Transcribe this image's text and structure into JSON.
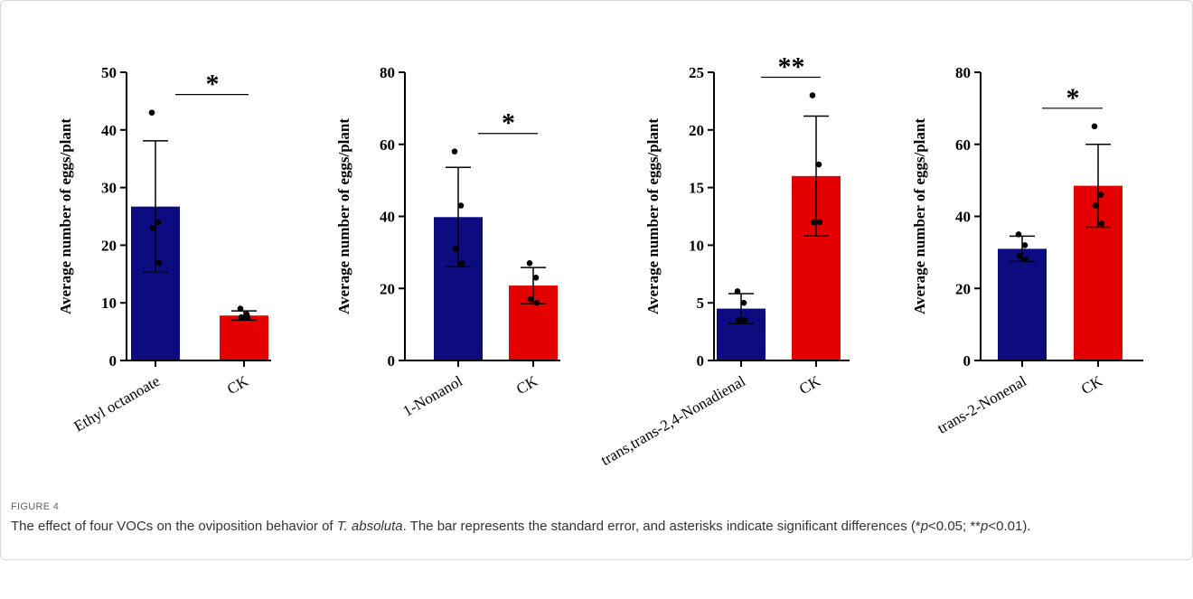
{
  "figure_label": "FIGURE 4",
  "caption": [
    "The effect of four VOCs on the oviposition behavior of ",
    "T. absoluta",
    ". The bar represents the standard error, and asterisks indicate significant differences (*",
    "p",
    "<0.05; **",
    "p",
    "<0.01)."
  ],
  "chart_data": [
    {
      "type": "bar",
      "ylabel": "Average number of eggs/plant",
      "categories": [
        "Ethyl octanoate",
        "CK"
      ],
      "values": [
        26.7,
        7.8
      ],
      "errors": [
        11.4,
        0.8
      ],
      "points": [
        [
          43,
          24,
          23,
          17
        ],
        [
          9,
          8,
          7.5,
          7.5
        ]
      ],
      "colors": [
        "#0c0c80",
        "#e50000"
      ],
      "significance": "*",
      "ylim": [
        0,
        50
      ],
      "yticks": [
        0,
        10,
        20,
        30,
        40,
        50
      ]
    },
    {
      "type": "bar",
      "ylabel": "Average number of eggs/plant",
      "categories": [
        "1-Nonanol",
        "CK"
      ],
      "values": [
        39.8,
        20.8
      ],
      "errors": [
        13.8,
        5
      ],
      "points": [
        [
          58,
          43,
          31,
          27
        ],
        [
          27,
          23,
          17,
          16
        ]
      ],
      "colors": [
        "#0c0c80",
        "#e50000"
      ],
      "significance": "*",
      "ylim": [
        0,
        80
      ],
      "yticks": [
        0,
        20,
        40,
        60,
        80
      ]
    },
    {
      "type": "bar",
      "ylabel": "Average number of eggs/plant",
      "categories": [
        "trans,trans-2,4-Nonadienal",
        "CK"
      ],
      "values": [
        4.5,
        16
      ],
      "errors": [
        1.3,
        5.2
      ],
      "points": [
        [
          6,
          5,
          3.5,
          3.5
        ],
        [
          23,
          17,
          12,
          12
        ]
      ],
      "colors": [
        "#0c0c80",
        "#e50000"
      ],
      "significance": "**",
      "ylim": [
        0,
        25
      ],
      "yticks": [
        0,
        5,
        10,
        15,
        20,
        25
      ]
    },
    {
      "type": "bar",
      "ylabel": "Average number of eggs/plant",
      "categories": [
        "trans-2-Nonenal",
        "CK"
      ],
      "values": [
        31,
        48.5
      ],
      "errors": [
        3.5,
        11.5
      ],
      "points": [
        [
          35,
          32,
          29,
          28
        ],
        [
          65,
          46,
          43,
          38
        ]
      ],
      "colors": [
        "#0c0c80",
        "#e50000"
      ],
      "significance": "*",
      "ylim": [
        0,
        80
      ],
      "yticks": [
        0,
        20,
        40,
        60,
        80
      ]
    }
  ]
}
